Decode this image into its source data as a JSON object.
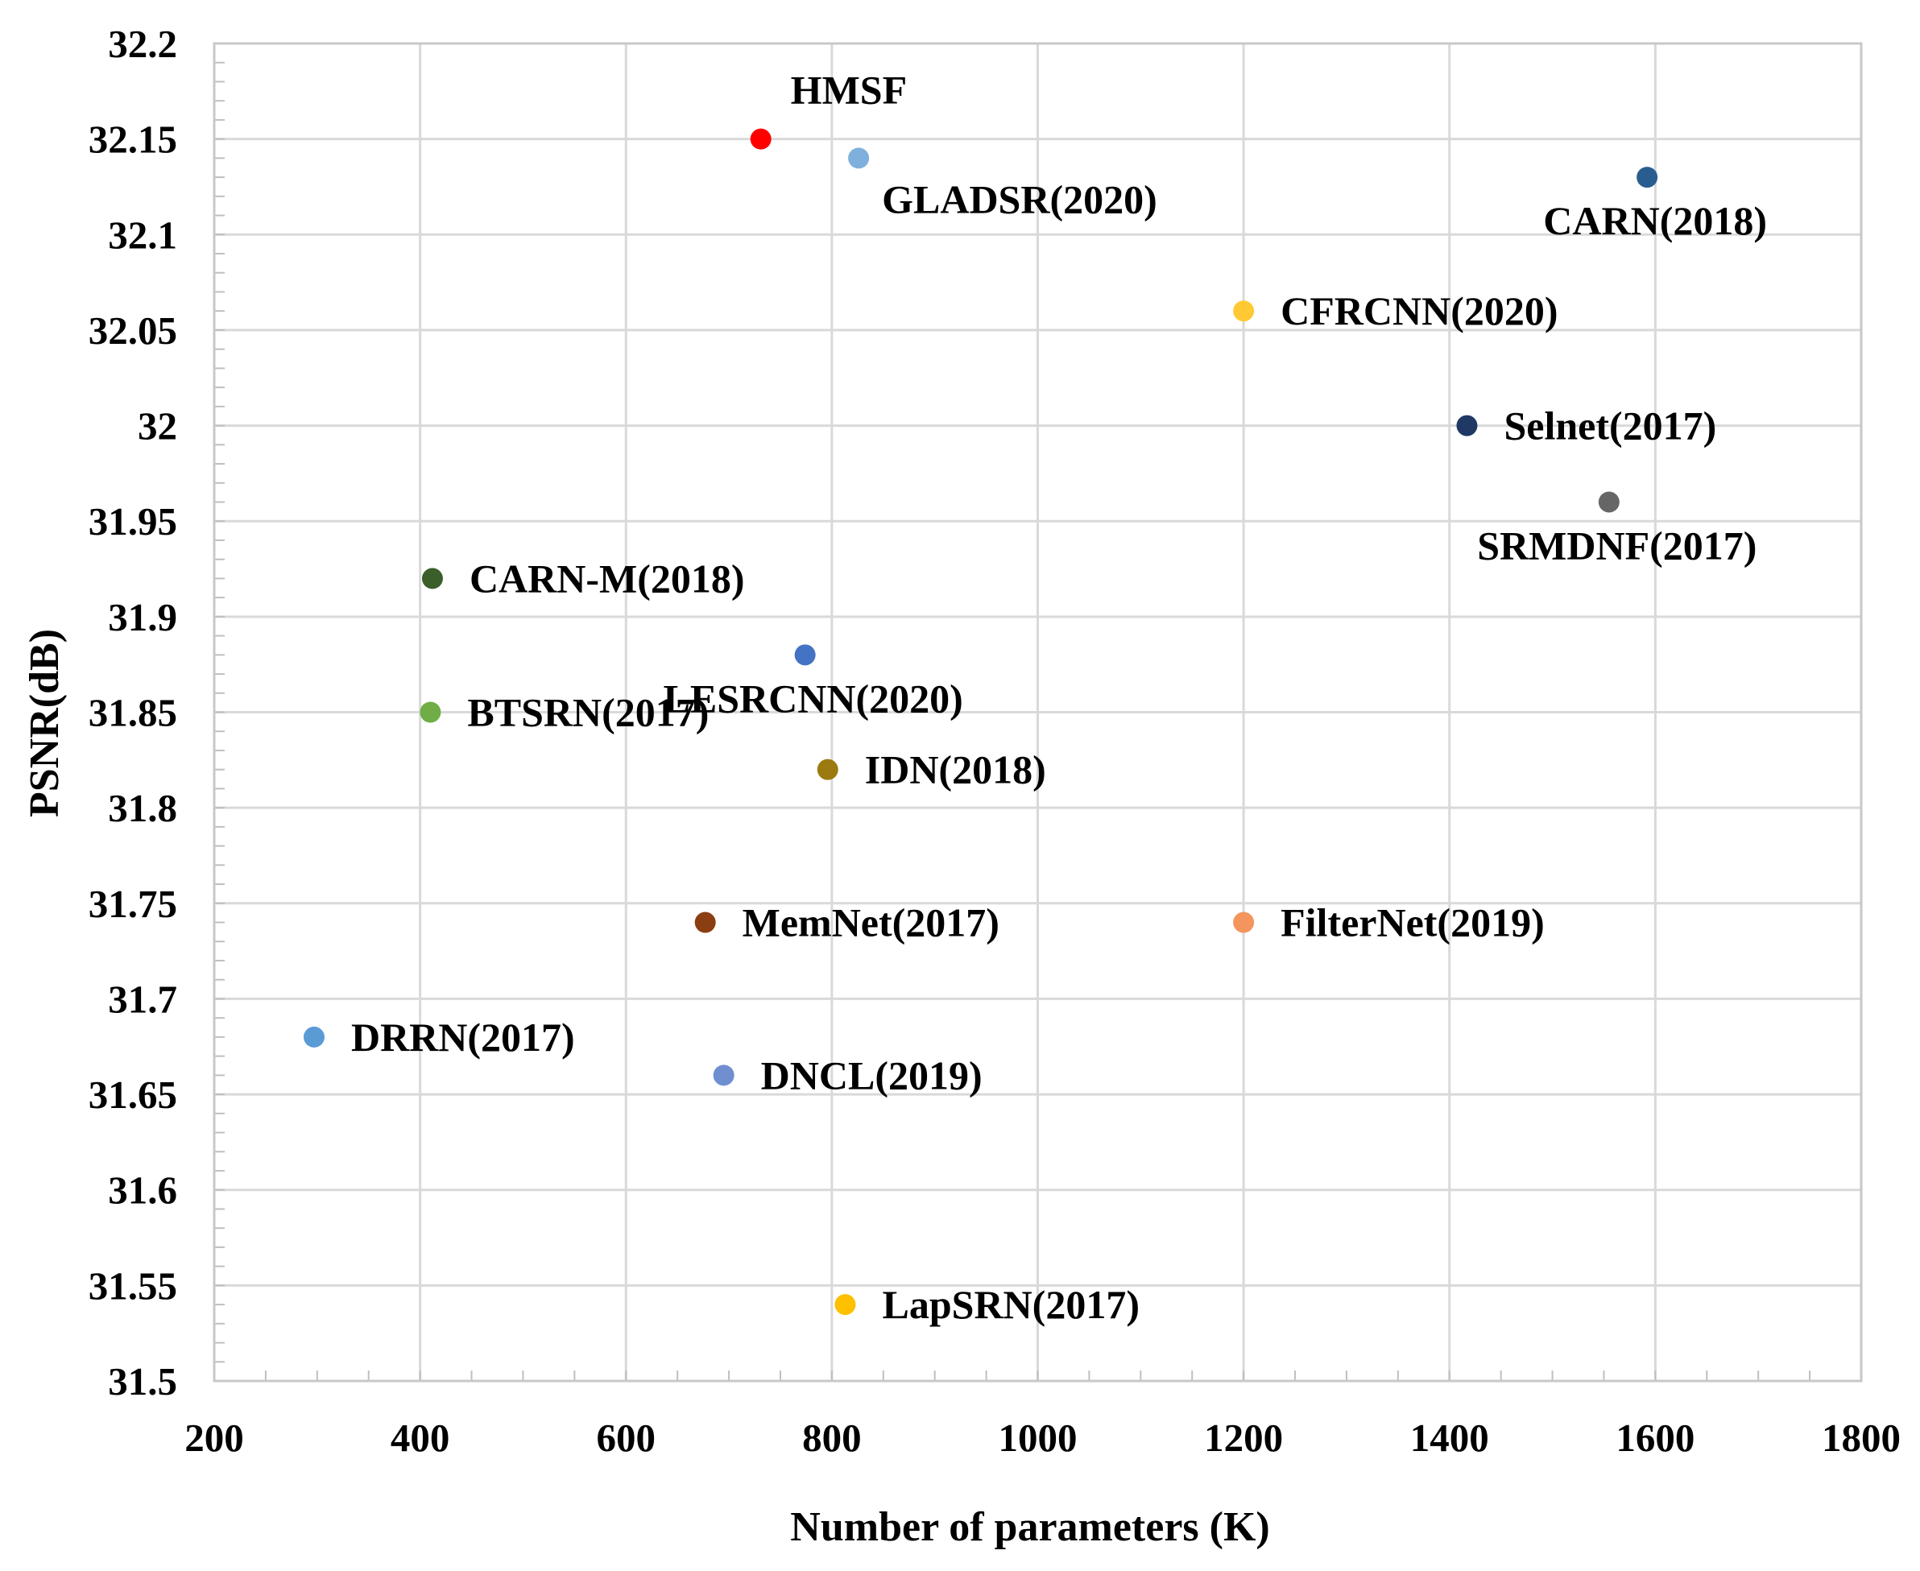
{
  "chart_data": {
    "type": "scatter",
    "title": "",
    "xlabel": "Number of parameters (K)",
    "ylabel": "PSNR(dB)",
    "xlim": [
      200,
      1800
    ],
    "ylim": [
      31.5,
      32.2
    ],
    "x_ticks": [
      "200",
      "400",
      "600",
      "800",
      "1000",
      "1200",
      "1400",
      "1600",
      "1800"
    ],
    "y_ticks": [
      "31.5",
      "31.55",
      "31.6",
      "31.65",
      "31.7",
      "31.75",
      "31.8",
      "31.85",
      "31.9",
      "31.95",
      "32",
      "32.05",
      "32.1",
      "32.15",
      "32.2"
    ],
    "grid": true,
    "legend": "none",
    "points": [
      {
        "label": "HMSF",
        "x": 731,
        "y": 32.15,
        "color": "#ff0000",
        "label_pos": "above-right"
      },
      {
        "label": "GLADSR(2020)",
        "x": 826,
        "y": 32.14,
        "color": "#7fb0dd",
        "label_pos": "below-right"
      },
      {
        "label": "CARN(2018)",
        "x": 1592,
        "y": 32.13,
        "color": "#2a5d8f",
        "label_pos": "below"
      },
      {
        "label": "CFRCNN(2020)",
        "x": 1200,
        "y": 32.06,
        "color": "#ffc933",
        "label_pos": "right"
      },
      {
        "label": "Selnet(2017)",
        "x": 1417,
        "y": 32.0,
        "color": "#203864",
        "label_pos": "right"
      },
      {
        "label": "SRMDNF(2017)",
        "x": 1555,
        "y": 31.96,
        "color": "#666666",
        "label_pos": "below"
      },
      {
        "label": "CARN-M(2018)",
        "x": 412,
        "y": 31.92,
        "color": "#3b5e2b",
        "label_pos": "right"
      },
      {
        "label": "LESRCNN(2020)",
        "x": 774,
        "y": 31.88,
        "color": "#4472c4",
        "label_pos": "below"
      },
      {
        "label": "BTSRN(2017)",
        "x": 410,
        "y": 31.85,
        "color": "#70ad47",
        "label_pos": "right"
      },
      {
        "label": "IDN(2018)",
        "x": 796,
        "y": 31.82,
        "color": "#9c7a0f",
        "label_pos": "right"
      },
      {
        "label": "MemNet(2017)",
        "x": 677,
        "y": 31.74,
        "color": "#8b3e12",
        "label_pos": "right"
      },
      {
        "label": "FilterNet(2019)",
        "x": 1200,
        "y": 31.74,
        "color": "#f4955e",
        "label_pos": "right"
      },
      {
        "label": "DRRN(2017)",
        "x": 297,
        "y": 31.68,
        "color": "#5b9bd5",
        "label_pos": "right"
      },
      {
        "label": "DNCL(2019)",
        "x": 695,
        "y": 31.66,
        "color": "#6f8fd0",
        "label_pos": "right"
      },
      {
        "label": "LapSRN(2017)",
        "x": 813,
        "y": 31.54,
        "color": "#ffc000",
        "label_pos": "right"
      }
    ]
  }
}
